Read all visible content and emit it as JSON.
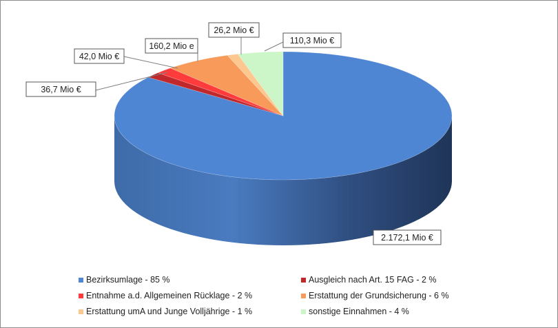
{
  "chart_data": {
    "type": "pie",
    "title": "",
    "slices": [
      {
        "label": "Bezirksumlage - 85 %",
        "value": 2172.1,
        "percent": 85,
        "data_label": "2.172,1 Mio €",
        "color": "#4f86d3"
      },
      {
        "label": "Ausgleich nach Art. 15 FAG - 2 %",
        "value": 36.7,
        "percent": 2,
        "data_label": "36,7 Mio €",
        "color": "#c0282c"
      },
      {
        "label": "Entnahme a.d. Allgemeinen Rücklage - 2 %",
        "value": 42.0,
        "percent": 2,
        "data_label": "42,0 Mio €",
        "color": "#ff3b3b"
      },
      {
        "label": "Erstattung der Grundsicherung - 6 %",
        "value": 160.2,
        "percent": 6,
        "data_label": "160,2 Mio e",
        "color": "#f79a5a"
      },
      {
        "label": "Erstattung umA und Junge Volljährige - 1 %",
        "value": 26.2,
        "percent": 1,
        "data_label": "26,2 Mio €",
        "color": "#fcc88f"
      },
      {
        "label": "sonstige Einnahmen - 4 %",
        "value": 110.3,
        "percent": 4,
        "data_label": "110,3 Mio €",
        "color": "#ccf5c8"
      }
    ],
    "legend_position": "bottom"
  }
}
